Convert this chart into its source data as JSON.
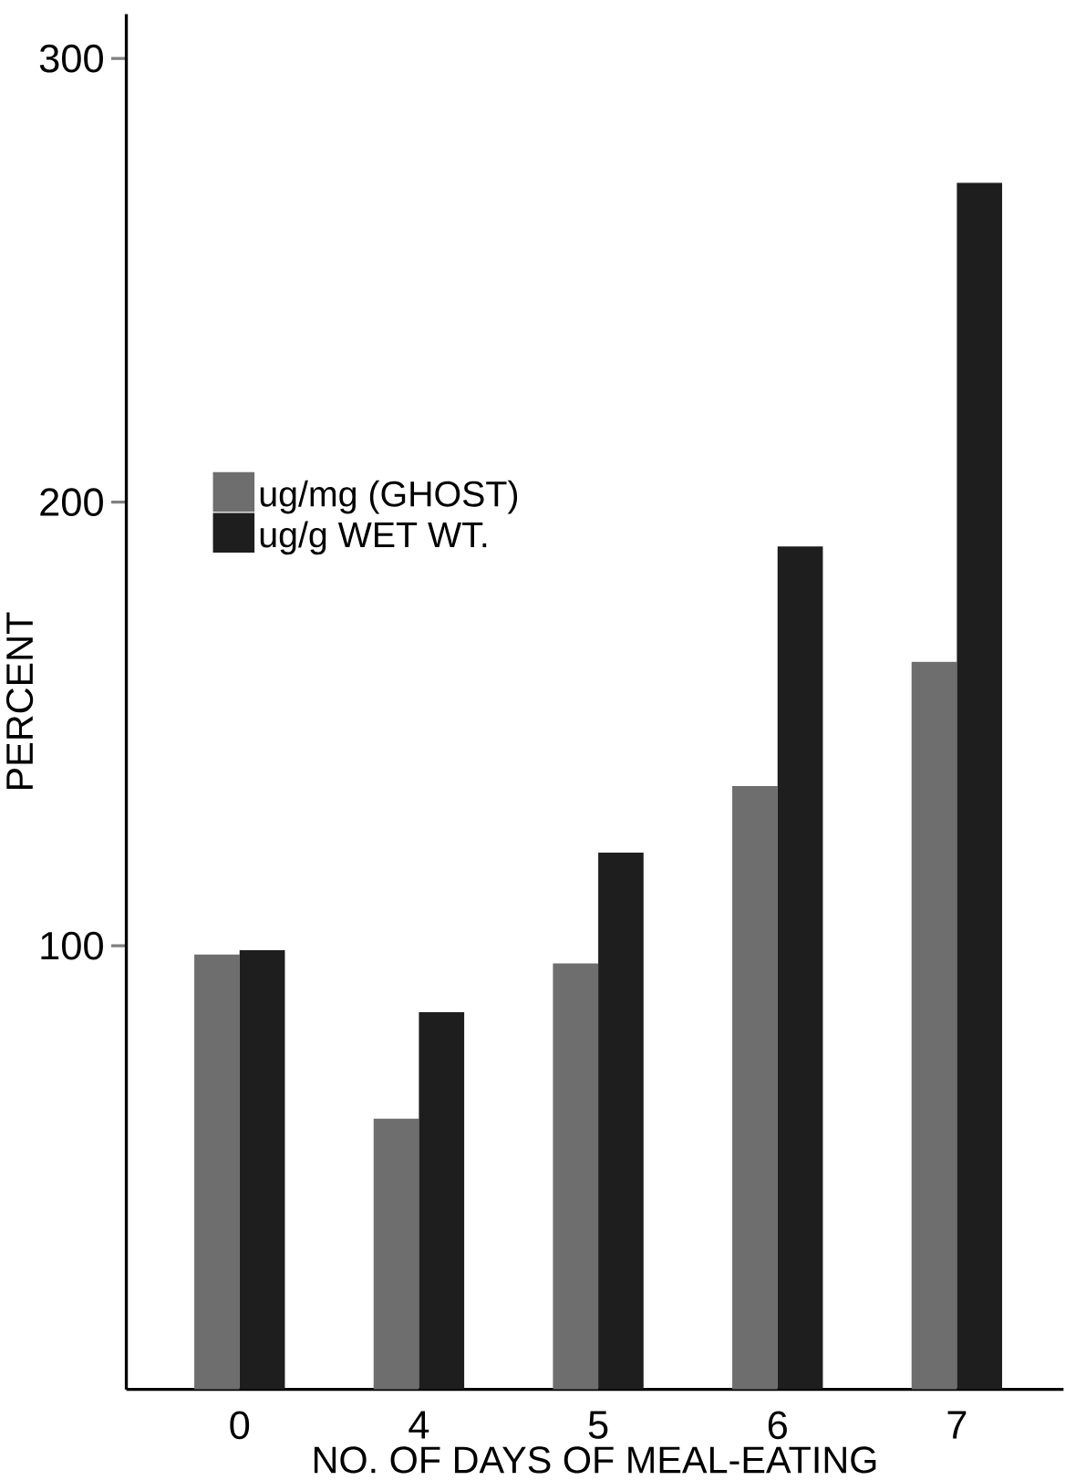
{
  "chart_data": {
    "type": "bar",
    "xlabel": "NO. OF DAYS OF MEAL-EATING",
    "ylabel": "PERCENT",
    "categories": [
      "0",
      "4",
      "5",
      "6",
      "7"
    ],
    "series": [
      {
        "name": "ug/mg (GHOST)",
        "color": "#6e6e6e",
        "values": [
          98,
          61,
          96,
          136,
          164
        ]
      },
      {
        "name": "ug/g WET WT.",
        "color": "#1e1e1e",
        "values": [
          99,
          85,
          121,
          190,
          272
        ]
      }
    ],
    "ylim": [
      0,
      310
    ],
    "yticks": [
      100,
      200,
      300
    ],
    "legend": "top left",
    "grid": false
  }
}
